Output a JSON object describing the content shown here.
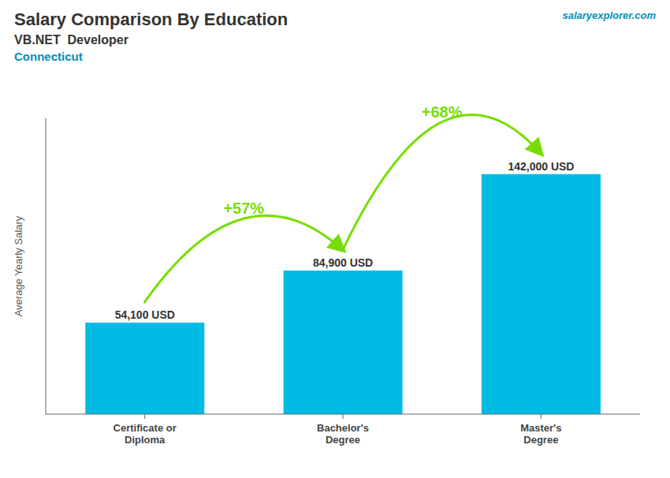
{
  "chart_data": {
    "type": "bar",
    "title": "Salary Comparison By Education",
    "subtitle": "VB.NET  Developer",
    "annotations": [
      "Connecticut",
      "salaryexplorer.com",
      {
        "text": "+57%",
        "from": "Certificate or\nDiploma",
        "to": "Bachelor's\nDegree",
        "color": "#77dd00"
      },
      {
        "text": "+68%",
        "from": "Bachelor's\nDegree",
        "to": "Master's\nDegree",
        "color": "#77dd00"
      }
    ],
    "y_label": "Average Yearly Salary",
    "categories": [
      "Certificate or\nDiploma",
      "Bachelor's\nDegree",
      "Master's\nDegree"
    ],
    "values": [
      54100,
      84900,
      142000
    ],
    "value_labels": [
      "54,100 USD",
      "84,900 USD",
      "142,000 USD"
    ],
    "data_labels": true,
    "color": "#00bce4",
    "ylim": [
      0,
      175000
    ],
    "yticks": [
      0,
      25000,
      50000,
      75000,
      100000,
      125000,
      150000,
      175000
    ],
    "tick_labels": "x",
    "grid": false
  }
}
